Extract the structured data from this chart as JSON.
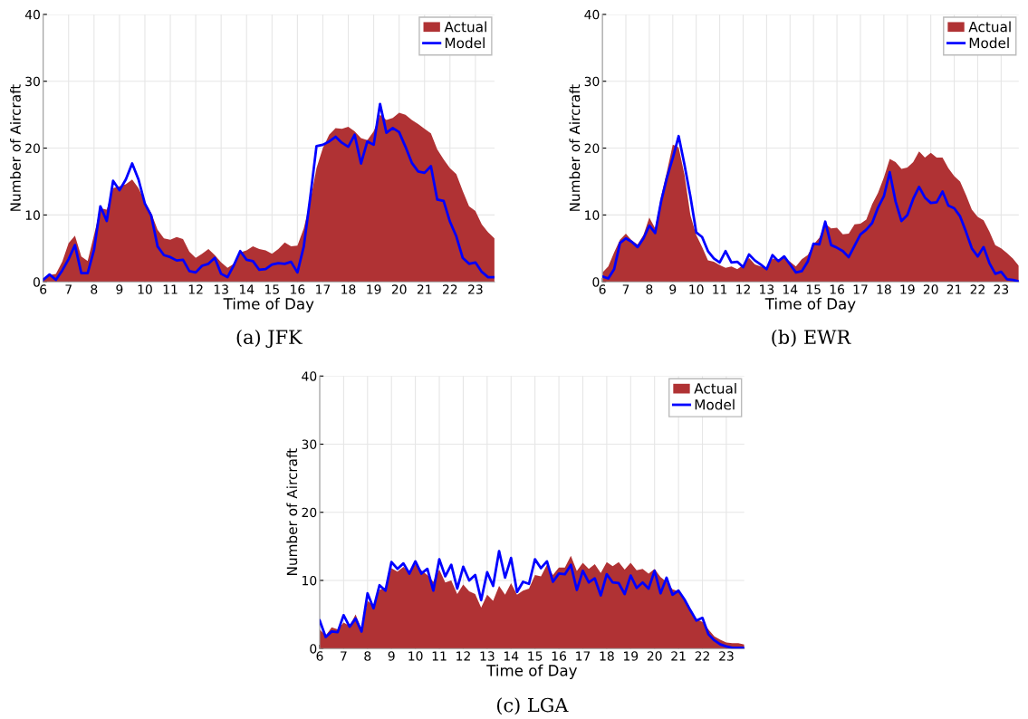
{
  "chart_data": [
    {
      "type": "area",
      "title": "(a) JFK",
      "xlabel": "Time of Day",
      "ylabel": "Number of Aircraft",
      "xlim": [
        6,
        23.75
      ],
      "ylim": [
        0,
        40
      ],
      "xticks": [
        6,
        7,
        8,
        9,
        10,
        11,
        12,
        13,
        14,
        15,
        16,
        17,
        18,
        19,
        20,
        21,
        22,
        23
      ],
      "yticks": [
        0,
        10,
        20,
        30,
        40
      ],
      "grid": true,
      "legend": "top right",
      "x": [
        6,
        6.25,
        6.5,
        6.75,
        7,
        7.25,
        7.5,
        7.75,
        8,
        8.25,
        8.5,
        8.75,
        9,
        9.25,
        9.5,
        9.75,
        10,
        10.25,
        10.5,
        10.75,
        11,
        11.25,
        11.5,
        11.75,
        12,
        12.25,
        12.5,
        12.75,
        13,
        13.25,
        13.5,
        13.75,
        14,
        14.25,
        14.5,
        14.75,
        15,
        15.25,
        15.5,
        15.75,
        16,
        16.25,
        16.5,
        16.75,
        17,
        17.25,
        17.5,
        17.75,
        18,
        18.25,
        18.5,
        18.75,
        19,
        19.25,
        19.5,
        19.75,
        20,
        20.25,
        20.5,
        20.75,
        21,
        21.25,
        21.5,
        21.75,
        22,
        22.25,
        22.5,
        22.75,
        23,
        23.25,
        23.5,
        23.75
      ],
      "series": [
        {
          "name": "Actual",
          "color": "#b03234",
          "values": [
            0.5,
            1.0,
            1.2,
            3,
            5.8,
            6.9,
            3.8,
            3.1,
            7,
            11,
            10.8,
            14,
            14.3,
            14.6,
            15.3,
            14,
            12,
            10.3,
            7.8,
            6.5,
            6.3,
            6.7,
            6.4,
            4.5,
            3.6,
            4.2,
            4.9,
            4.0,
            2.9,
            2.1,
            2.7,
            4.4,
            4.7,
            5.3,
            4.9,
            4.7,
            4.2,
            4.9,
            5.9,
            5.3,
            5.4,
            8,
            12,
            17,
            20,
            22,
            23,
            22.9,
            23.2,
            22.5,
            21.5,
            21.2,
            22.5,
            25,
            24.2,
            24.5,
            25.3,
            25,
            24.2,
            23.6,
            22.9,
            22.2,
            19.8,
            18.3,
            17,
            16.1,
            13.6,
            11.3,
            10.6,
            8.6,
            7.4,
            6.5
          ]
        },
        {
          "name": "Model",
          "type": "line",
          "color": "#0000ff",
          "values": [
            0.3,
            1.1,
            0.3,
            1.7,
            3.4,
            5.5,
            1.3,
            1.3,
            4.8,
            11.3,
            9.1,
            15.1,
            13.7,
            15.3,
            17.7,
            15.3,
            11.7,
            9.9,
            5.3,
            4,
            3.7,
            3.2,
            3.3,
            1.6,
            1.4,
            2.4,
            2.7,
            3.6,
            1.2,
            0.7,
            2.5,
            4.6,
            3.3,
            3.1,
            1.8,
            1.9,
            2.6,
            2.8,
            2.7,
            3.0,
            1.4,
            5.3,
            12.5,
            20.3,
            20.5,
            21,
            21.7,
            20.8,
            20.2,
            22,
            17.7,
            21,
            20.5,
            26.6,
            22.3,
            23,
            22.4,
            20.2,
            17.8,
            16.5,
            16.3,
            17.3,
            12.3,
            12.1,
            9,
            6.8,
            3.6,
            2.7,
            2.9,
            1.5,
            0.7,
            0.7
          ]
        }
      ]
    },
    {
      "type": "area",
      "title": "(b) EWR",
      "xlabel": "Time of Day",
      "ylabel": "Number of Aircraft",
      "xlim": [
        6,
        23.75
      ],
      "ylim": [
        0,
        40
      ],
      "xticks": [
        6,
        7,
        8,
        9,
        10,
        11,
        12,
        13,
        14,
        15,
        16,
        17,
        18,
        19,
        20,
        21,
        22,
        23
      ],
      "yticks": [
        0,
        10,
        20,
        30,
        40
      ],
      "grid": true,
      "legend": "top right",
      "x": [
        6,
        6.25,
        6.5,
        6.75,
        7,
        7.25,
        7.5,
        7.75,
        8,
        8.25,
        8.5,
        8.75,
        9,
        9.25,
        9.5,
        9.75,
        10,
        10.25,
        10.5,
        10.75,
        11,
        11.25,
        11.5,
        11.75,
        12,
        12.25,
        12.5,
        12.75,
        13,
        13.25,
        13.5,
        13.75,
        14,
        14.25,
        14.5,
        14.75,
        15,
        15.25,
        15.5,
        15.75,
        16,
        16.25,
        16.5,
        16.75,
        17,
        17.25,
        17.5,
        17.75,
        18,
        18.25,
        18.5,
        18.75,
        19,
        19.25,
        19.5,
        19.75,
        20,
        20.25,
        20.5,
        20.75,
        21,
        21.25,
        21.5,
        21.75,
        22,
        22.25,
        22.5,
        22.75,
        23,
        23.25,
        23.5,
        23.75
      ],
      "series": [
        {
          "name": "Actual",
          "color": "#b03234",
          "values": [
            1.4,
            2.3,
            4.4,
            6.3,
            7.2,
            6.2,
            5.6,
            7,
            9.6,
            8,
            12.7,
            16.5,
            20.5,
            20.1,
            16,
            10,
            7,
            5.2,
            3.2,
            3,
            2.5,
            2.1,
            2.3,
            1.9,
            2.5,
            3.6,
            2.6,
            2.3,
            2.1,
            3.5,
            3.4,
            3.6,
            3,
            2.3,
            3.4,
            4,
            5.6,
            6.6,
            8.7,
            8,
            8.1,
            7.1,
            7.2,
            8.6,
            8.7,
            9.3,
            11.6,
            13.3,
            15.6,
            18.4,
            17.9,
            16.9,
            17.1,
            17.9,
            19.5,
            18.6,
            19.3,
            18.6,
            18.6,
            17,
            15.8,
            15,
            13,
            10.8,
            9.7,
            9.2,
            7.5,
            5.5,
            5,
            4.3,
            3.5,
            2.4
          ]
        },
        {
          "name": "Model",
          "type": "line",
          "color": "#0000ff",
          "values": [
            0.8,
            0.5,
            1.9,
            5.8,
            6.5,
            6.0,
            5.2,
            6.5,
            8.4,
            7.3,
            12,
            15.6,
            18.5,
            21.8,
            17.5,
            12.8,
            7.4,
            6.7,
            4.6,
            3.5,
            2.9,
            4.6,
            2.9,
            3,
            2.2,
            4.1,
            3.2,
            2.6,
            1.9,
            4,
            3.1,
            3.8,
            2.6,
            1.4,
            1.6,
            3,
            5.7,
            5.6,
            9,
            5.5,
            5.1,
            4.6,
            3.7,
            5.4,
            7.1,
            7.8,
            8.8,
            11.1,
            12.8,
            16.4,
            12,
            9.1,
            10,
            12.4,
            14.2,
            12.6,
            11.8,
            11.9,
            13.5,
            11.4,
            11,
            9.8,
            7.5,
            5,
            3.8,
            5.2,
            2.8,
            1.2,
            1.5,
            0.4,
            0.3,
            0.1
          ]
        }
      ]
    },
    {
      "type": "area",
      "title": "(c) LGA",
      "xlabel": "Time of Day",
      "ylabel": "Number of Aircraft",
      "xlim": [
        6,
        23.75
      ],
      "ylim": [
        0,
        40
      ],
      "xticks": [
        6,
        7,
        8,
        9,
        10,
        11,
        12,
        13,
        14,
        15,
        16,
        17,
        18,
        19,
        20,
        21,
        22,
        23
      ],
      "yticks": [
        0,
        10,
        20,
        30,
        40
      ],
      "grid": true,
      "legend": "top right",
      "x": [
        6,
        6.25,
        6.5,
        6.75,
        7,
        7.25,
        7.5,
        7.75,
        8,
        8.25,
        8.5,
        8.75,
        9,
        9.25,
        9.5,
        9.75,
        10,
        10.25,
        10.5,
        10.75,
        11,
        11.25,
        11.5,
        11.75,
        12,
        12.25,
        12.5,
        12.75,
        13,
        13.25,
        13.5,
        13.75,
        14,
        14.25,
        14.5,
        14.75,
        15,
        15.25,
        15.5,
        15.75,
        16,
        16.25,
        16.5,
        16.75,
        17,
        17.25,
        17.5,
        17.75,
        18,
        18.25,
        18.5,
        18.75,
        19,
        19.25,
        19.5,
        19.75,
        20,
        20.25,
        20.5,
        20.75,
        21,
        21.25,
        21.5,
        21.75,
        22,
        22.25,
        22.5,
        22.75,
        23,
        23.25,
        23.5,
        23.75
      ],
      "series": [
        {
          "name": "Actual",
          "color": "#b03234",
          "values": [
            2.8,
            1.9,
            3.1,
            2.8,
            3.8,
            3.3,
            5,
            2.8,
            7,
            6.3,
            8.6,
            9,
            11.8,
            11.3,
            12,
            11.2,
            12.4,
            11.5,
            10.8,
            9.8,
            11.6,
            9.7,
            10,
            8,
            9.4,
            8.4,
            8,
            6,
            7.9,
            7,
            9.2,
            7.9,
            9.6,
            7.9,
            8.5,
            8.8,
            10.8,
            10.6,
            12.3,
            10.8,
            11.9,
            11.9,
            13.6,
            11.4,
            12.6,
            11.7,
            12.4,
            11.1,
            12.7,
            12.1,
            12.7,
            11.6,
            12.6,
            11.5,
            11.7,
            11,
            11.7,
            10.5,
            9.8,
            8.7,
            8.4,
            7,
            5.5,
            4.3,
            3.9,
            2.8,
            1.8,
            1.3,
            0.9,
            0.8,
            0.8,
            0.6
          ]
        },
        {
          "name": "Model",
          "type": "line",
          "color": "#0000ff",
          "values": [
            4.1,
            1.7,
            2.5,
            2.4,
            4.9,
            3.2,
            4.4,
            2.5,
            8.1,
            5.9,
            9.3,
            8.5,
            12.7,
            11.7,
            12.5,
            11,
            12.8,
            11,
            11.7,
            8.5,
            13.1,
            10.6,
            12.3,
            8.8,
            12,
            10,
            10.8,
            7.1,
            11.2,
            9.2,
            14.3,
            10.4,
            13.3,
            8.3,
            9.8,
            9.5,
            13.1,
            11.8,
            12.8,
            9.8,
            11,
            10.9,
            12.3,
            8.6,
            11.4,
            9.7,
            10.3,
            7.8,
            10.9,
            9.7,
            9.6,
            8,
            10.7,
            8.9,
            9.7,
            8.8,
            11.4,
            8.1,
            10.4,
            7.9,
            8.5,
            7.2,
            5.6,
            4.1,
            4.5,
            2.1,
            1.2,
            0.6,
            0.3,
            0.1,
            0.1,
            0.1
          ]
        }
      ]
    }
  ]
}
